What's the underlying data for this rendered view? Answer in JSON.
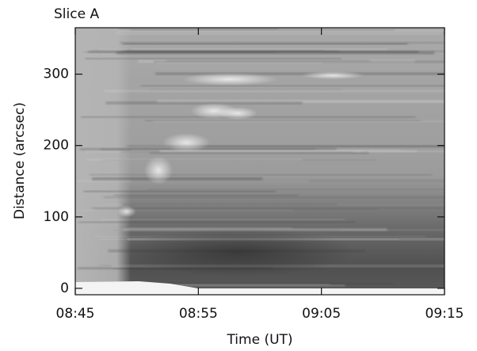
{
  "chart_data": {
    "type": "image",
    "title": "Slice A",
    "x_label": "Time (UT)",
    "y_label": "Distance (arcsec)",
    "xlim": [
      "08:45",
      "09:15"
    ],
    "xticks": [
      "08:45",
      "08:55",
      "09:05",
      "09:15"
    ],
    "ylim": [
      -9,
      365
    ],
    "yticks": [
      0,
      100,
      200,
      300
    ]
  }
}
